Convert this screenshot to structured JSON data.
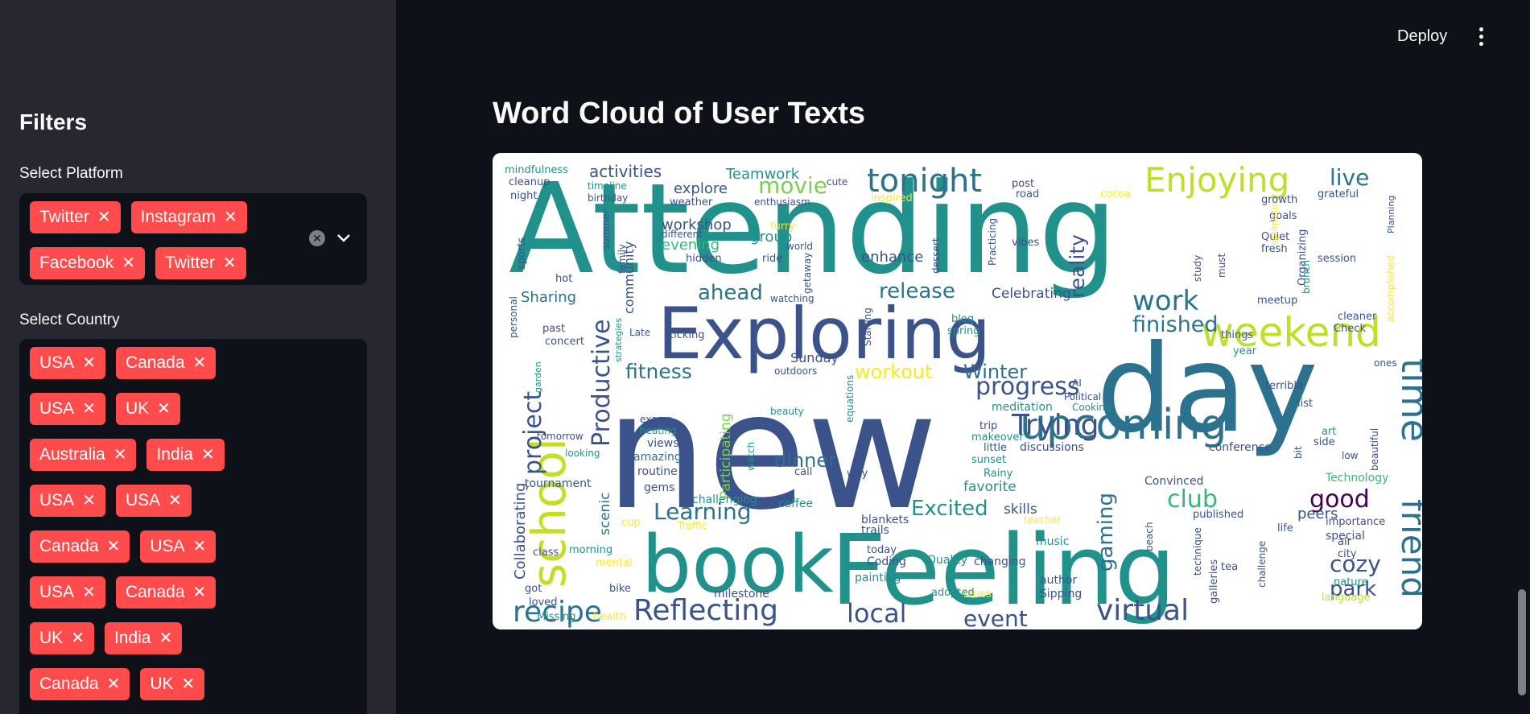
{
  "sidebar": {
    "title": "Filters",
    "platform": {
      "label": "Select Platform",
      "chips": [
        "Twitter",
        "Instagram",
        "Facebook",
        "Twitter"
      ],
      "remove_glyph": "✕"
    },
    "country": {
      "label": "Select Country",
      "chips": [
        "USA",
        "Canada",
        "USA",
        "UK",
        "Australia",
        "India",
        "USA",
        "USA",
        "Canada",
        "USA",
        "USA",
        "Canada",
        "UK",
        "India",
        "Canada",
        "UK"
      ],
      "remove_glyph": "✕"
    },
    "icons": {
      "clear": "clear-circle-icon",
      "expand": "chevron-down-icon"
    }
  },
  "header": {
    "deploy_label": "Deploy",
    "menu_icon": "vertical-dots-icon"
  },
  "main": {
    "title": "Word Cloud of User Texts",
    "words": [
      {
        "text": "Attending",
        "color": "#21918c"
      },
      {
        "text": "new",
        "color": "#3b528b"
      },
      {
        "text": "day",
        "color": "#2c728e"
      },
      {
        "text": "Feeling",
        "color": "#21918c"
      },
      {
        "text": "Exploring",
        "color": "#3b528b"
      },
      {
        "text": "book",
        "color": "#21918c"
      },
      {
        "text": "school",
        "color": "#c2df23"
      },
      {
        "text": "weekend",
        "color": "#bddf26"
      },
      {
        "text": "upcoming",
        "color": "#2c728e"
      },
      {
        "text": "Enjoying",
        "color": "#bddf26"
      },
      {
        "text": "tonight",
        "color": "#2c728e"
      },
      {
        "text": "time",
        "color": "#2c728e"
      },
      {
        "text": "friend",
        "color": "#2c728e"
      },
      {
        "text": "Reflecting",
        "color": "#3b528b"
      },
      {
        "text": "recipe",
        "color": "#2c728e"
      },
      {
        "text": "virtual",
        "color": "#3b528b"
      },
      {
        "text": "work",
        "color": "#2c728e"
      },
      {
        "text": "Trying",
        "color": "#3b528b"
      },
      {
        "text": "progress",
        "color": "#3b528b"
      },
      {
        "text": "project",
        "color": "#3b528b"
      },
      {
        "text": "Productive",
        "color": "#3b528b"
      },
      {
        "text": "Learning",
        "color": "#2c728e"
      },
      {
        "text": "local",
        "color": "#3b528b"
      },
      {
        "text": "event",
        "color": "#3b528b"
      },
      {
        "text": "good",
        "color": "#440154"
      },
      {
        "text": "club",
        "color": "#35b779"
      },
      {
        "text": "finished",
        "color": "#2c728e"
      },
      {
        "text": "reality",
        "color": "#3b528b"
      },
      {
        "text": "fitness",
        "color": "#2c728e"
      },
      {
        "text": "dinner",
        "color": "#2c728e"
      },
      {
        "text": "Excited",
        "color": "#21918c"
      },
      {
        "text": "workout",
        "color": "#fde725"
      },
      {
        "text": "Winter",
        "color": "#2c728e"
      },
      {
        "text": "release",
        "color": "#2c728e"
      },
      {
        "text": "ahead",
        "color": "#2c728e"
      },
      {
        "text": "movie",
        "color": "#7ad151"
      },
      {
        "text": "live",
        "color": "#2c728e"
      },
      {
        "text": "cozy",
        "color": "#3b528b"
      },
      {
        "text": "park",
        "color": "#3b528b"
      },
      {
        "text": "gaming",
        "color": "#2c728e"
      },
      {
        "text": "activities",
        "color": "#3b528b"
      },
      {
        "text": "Teamwork",
        "color": "#21918c"
      },
      {
        "text": "explore",
        "color": "#3b528b"
      },
      {
        "text": "workshop",
        "color": "#3b528b"
      },
      {
        "text": "evening",
        "color": "#35b779"
      },
      {
        "text": "group",
        "color": "#21918c"
      },
      {
        "text": "enhance",
        "color": "#3b528b"
      },
      {
        "text": "Sharing",
        "color": "#2c728e"
      },
      {
        "text": "Celebrating",
        "color": "#3b528b"
      },
      {
        "text": "Collaborating",
        "color": "#3b528b"
      },
      {
        "text": "Participating",
        "color": "#7ad151"
      },
      {
        "text": "scenic",
        "color": "#2c728e"
      },
      {
        "text": "favorite",
        "color": "#21918c"
      },
      {
        "text": "skills",
        "color": "#3b528b"
      },
      {
        "text": "community",
        "color": "#3b528b"
      },
      {
        "text": "Sunday",
        "color": "#3b528b"
      },
      {
        "text": "meditation",
        "color": "#21918c"
      },
      {
        "text": "discussions",
        "color": "#3b528b"
      },
      {
        "text": "conference",
        "color": "#3b528b"
      },
      {
        "text": "Convinced",
        "color": "#3b528b"
      },
      {
        "text": "Technology",
        "color": "#35b779"
      },
      {
        "text": "peers",
        "color": "#3b528b"
      },
      {
        "text": "special",
        "color": "#3b528b"
      },
      {
        "text": "importance",
        "color": "#3b528b"
      },
      {
        "text": "tournament",
        "color": "#3b528b"
      },
      {
        "text": "routine",
        "color": "#3b528b"
      },
      {
        "text": "amazing",
        "color": "#2c728e"
      },
      {
        "text": "views",
        "color": "#3b528b"
      },
      {
        "text": "gems",
        "color": "#3b528b"
      },
      {
        "text": "challenging",
        "color": "#21918c"
      },
      {
        "text": "coffee",
        "color": "#21918c"
      },
      {
        "text": "trails",
        "color": "#3b528b"
      },
      {
        "text": "blankets",
        "color": "#3b528b"
      },
      {
        "text": "Coding",
        "color": "#3b528b"
      },
      {
        "text": "painting",
        "color": "#21918c"
      },
      {
        "text": "Quality",
        "color": "#21918c"
      },
      {
        "text": "changing",
        "color": "#3b528b"
      },
      {
        "text": "music",
        "color": "#21918c"
      },
      {
        "text": "author",
        "color": "#3b528b"
      },
      {
        "text": "Sipping",
        "color": "#3b528b"
      },
      {
        "text": "milestone",
        "color": "#3b528b"
      },
      {
        "text": "language",
        "color": "#bddf26"
      },
      {
        "text": "nature",
        "color": "#21918c"
      },
      {
        "text": "city",
        "color": "#3b528b"
      },
      {
        "text": "air",
        "color": "#3b528b"
      },
      {
        "text": "galleries",
        "color": "#3b528b"
      },
      {
        "text": "mindfulness",
        "color": "#21918c"
      },
      {
        "text": "cleanup",
        "color": "#3b528b"
      },
      {
        "text": "night",
        "color": "#3b528b"
      },
      {
        "text": "grateful",
        "color": "#3b528b"
      },
      {
        "text": "growth",
        "color": "#3b528b"
      },
      {
        "text": "goals",
        "color": "#3b528b"
      },
      {
        "text": "Quiet",
        "color": "#3b528b"
      },
      {
        "text": "fresh",
        "color": "#3b528b"
      },
      {
        "text": "session",
        "color": "#3b528b"
      },
      {
        "text": "Organizing",
        "color": "#3b528b"
      },
      {
        "text": "Planning",
        "color": "#3b528b"
      },
      {
        "text": "cleaner",
        "color": "#3b528b"
      },
      {
        "text": "Check",
        "color": "#3b528b"
      },
      {
        "text": "meetup",
        "color": "#3b528b"
      },
      {
        "text": "vibes",
        "color": "#3b528b"
      },
      {
        "text": "road",
        "color": "#3b528b"
      },
      {
        "text": "post",
        "color": "#3b528b"
      },
      {
        "text": "cocoa",
        "color": "#fde725"
      },
      {
        "text": "weather",
        "color": "#3b528b"
      },
      {
        "text": "enthusiasm",
        "color": "#3b528b"
      },
      {
        "text": "cute",
        "color": "#3b528b"
      },
      {
        "text": "inspired",
        "color": "#fde725"
      },
      {
        "text": "birthday",
        "color": "#3b528b"
      },
      {
        "text": "timeline",
        "color": "#21918c"
      },
      {
        "text": "different",
        "color": "#3b528b"
      },
      {
        "text": "hidden",
        "color": "#3b528b"
      },
      {
        "text": "ride",
        "color": "#3b528b"
      },
      {
        "text": "world",
        "color": "#3b528b"
      },
      {
        "text": "furry",
        "color": "#fde725"
      },
      {
        "text": "getaway",
        "color": "#3b528b"
      },
      {
        "text": "watching",
        "color": "#3b528b"
      },
      {
        "text": "dessert",
        "color": "#3b528b"
      },
      {
        "text": "Practicing",
        "color": "#3b528b"
      },
      {
        "text": "blog",
        "color": "#21918c"
      },
      {
        "text": "spring",
        "color": "#21918c"
      },
      {
        "text": "Starting",
        "color": "#3b528b"
      },
      {
        "text": "ticking",
        "color": "#3b528b"
      },
      {
        "text": "Late",
        "color": "#3b528b"
      },
      {
        "text": "past",
        "color": "#3b528b"
      },
      {
        "text": "concert",
        "color": "#3b528b"
      },
      {
        "text": "personal",
        "color": "#3b528b"
      },
      {
        "text": "sports",
        "color": "#3b528b"
      },
      {
        "text": "hot",
        "color": "#3b528b"
      },
      {
        "text": "summer",
        "color": "#3b528b"
      },
      {
        "text": "family",
        "color": "#3b528b"
      },
      {
        "text": "strategies",
        "color": "#21918c"
      },
      {
        "text": "garden",
        "color": "#21918c"
      },
      {
        "text": "outdoors",
        "color": "#3b528b"
      },
      {
        "text": "beauty",
        "color": "#21918c"
      },
      {
        "text": "exams",
        "color": "#3b528b"
      },
      {
        "text": "heating",
        "color": "#21918c"
      },
      {
        "text": "equations",
        "color": "#21918c"
      },
      {
        "text": "watch",
        "color": "#21918c"
      },
      {
        "text": "call",
        "color": "#3b528b"
      },
      {
        "text": "way",
        "color": "#3b528b"
      },
      {
        "text": "tomorrow",
        "color": "#3b528b"
      },
      {
        "text": "looking",
        "color": "#21918c"
      },
      {
        "text": "trip",
        "color": "#3b528b"
      },
      {
        "text": "makeover",
        "color": "#21918c"
      },
      {
        "text": "little",
        "color": "#3b528b"
      },
      {
        "text": "sunset",
        "color": "#21918c"
      },
      {
        "text": "Rainy",
        "color": "#21918c"
      },
      {
        "text": "Political",
        "color": "#3b528b"
      },
      {
        "text": "AI",
        "color": "#3b528b"
      },
      {
        "text": "Cooking",
        "color": "#21918c"
      },
      {
        "text": "year",
        "color": "#21918c"
      },
      {
        "text": "things",
        "color": "#3b528b"
      },
      {
        "text": "brunch",
        "color": "#21918c"
      },
      {
        "text": "study",
        "color": "#3b528b"
      },
      {
        "text": "must",
        "color": "#3b528b"
      },
      {
        "text": "optimistic",
        "color": "#fde725"
      },
      {
        "text": "accomplished",
        "color": "#fde725"
      },
      {
        "text": "terrible",
        "color": "#3b528b"
      },
      {
        "text": "list",
        "color": "#3b528b"
      },
      {
        "text": "art",
        "color": "#21918c"
      },
      {
        "text": "side",
        "color": "#3b528b"
      },
      {
        "text": "bit",
        "color": "#3b528b"
      },
      {
        "text": "low",
        "color": "#3b528b"
      },
      {
        "text": "beautiful",
        "color": "#3b528b"
      },
      {
        "text": "published",
        "color": "#3b528b"
      },
      {
        "text": "life",
        "color": "#3b528b"
      },
      {
        "text": "challenge",
        "color": "#3b528b"
      },
      {
        "text": "technique",
        "color": "#3b528b"
      },
      {
        "text": "tea",
        "color": "#3b528b"
      },
      {
        "text": "beach",
        "color": "#3b528b"
      },
      {
        "text": "teacher",
        "color": "#fde725"
      },
      {
        "text": "blues",
        "color": "#fde725"
      },
      {
        "text": "adopted",
        "color": "#21918c"
      },
      {
        "text": "today",
        "color": "#3b528b"
      },
      {
        "text": "health",
        "color": "#fde725"
      },
      {
        "text": "Missing",
        "color": "#21918c"
      },
      {
        "text": "loved",
        "color": "#3b528b"
      },
      {
        "text": "got",
        "color": "#3b528b"
      },
      {
        "text": "class",
        "color": "#3b528b"
      },
      {
        "text": "morning",
        "color": "#21918c"
      },
      {
        "text": "mental",
        "color": "#fde725"
      },
      {
        "text": "cup",
        "color": "#fde725"
      },
      {
        "text": "bike",
        "color": "#3b528b"
      },
      {
        "text": "Traffic",
        "color": "#fde725"
      },
      {
        "text": "ones",
        "color": "#3b528b"
      }
    ]
  }
}
